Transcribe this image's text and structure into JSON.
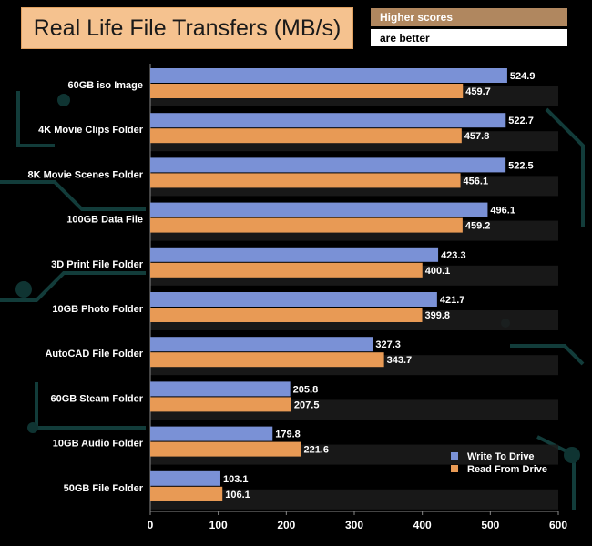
{
  "header": {
    "title": "Real Life File Transfers (MB/s)",
    "note_line1": "Higher scores",
    "note_line2": "are better"
  },
  "colors": {
    "write": "#7a91d6",
    "read": "#e89a55",
    "label": "#ffffff",
    "band": "#1c1c1c",
    "circuit": "#12403f"
  },
  "chart_data": {
    "type": "bar",
    "orientation": "horizontal",
    "title": "Real Life File Transfers (MB/s)",
    "categories": [
      "60GB iso Image",
      "4K Movie Clips Folder",
      "8K Movie Scenes Folder",
      "100GB Data File",
      "3D Print File Folder",
      "10GB Photo Folder",
      "AutoCAD File Folder",
      "60GB Steam Folder",
      "10GB Audio Folder",
      "50GB File Folder"
    ],
    "series": [
      {
        "name": "Write To  Drive",
        "values": [
          524.9,
          522.7,
          522.5,
          496.1,
          423.3,
          421.7,
          327.3,
          205.8,
          179.8,
          103.1
        ]
      },
      {
        "name": "Read From  Drive",
        "values": [
          459.7,
          457.8,
          456.1,
          459.2,
          400.1,
          399.8,
          343.7,
          207.5,
          221.6,
          106.1
        ]
      }
    ],
    "xlim": [
      0,
      600
    ],
    "xticks": [
      0,
      100,
      200,
      300,
      400,
      500,
      600
    ],
    "xlabel": "",
    "ylabel": "",
    "legend": "bottom-right"
  }
}
